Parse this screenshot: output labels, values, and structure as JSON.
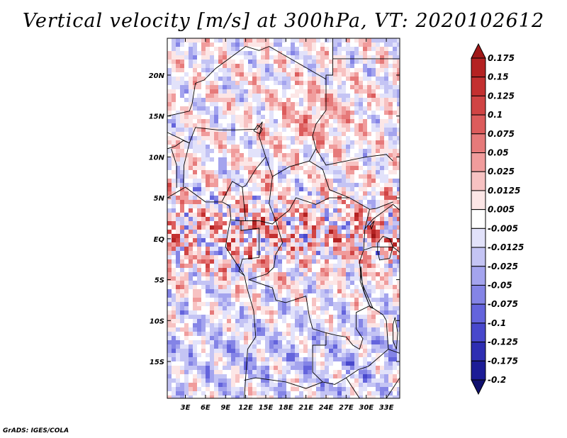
{
  "chart_data": {
    "type": "heatmap",
    "title": "Vertical velocity [m/s] at 300hPa, VT: 2020102612",
    "variable": "Vertical velocity",
    "units": "m/s",
    "level": "300hPa",
    "valid_time": "2020102612",
    "x_ticks": [
      "3E",
      "6E",
      "9E",
      "12E",
      "15E",
      "18E",
      "21E",
      "24E",
      "27E",
      "30E",
      "33E"
    ],
    "y_ticks": [
      "20N",
      "15N",
      "10N",
      "5N",
      "EQ",
      "5S",
      "10S",
      "15S"
    ],
    "x_values": [
      3,
      6,
      9,
      12,
      15,
      18,
      21,
      24,
      27,
      30,
      33
    ],
    "y_values": [
      20,
      15,
      10,
      5,
      0,
      -5,
      -10,
      -15
    ],
    "xlim": [
      0.3,
      35.0
    ],
    "ylim": [
      -19.5,
      24.5
    ],
    "colorbar": {
      "levels": [
        "0.175",
        "0.15",
        "0.125",
        "0.1",
        "0.075",
        "0.05",
        "0.025",
        "0.0125",
        "0.005",
        "-0.005",
        "-0.0125",
        "-0.025",
        "-0.05",
        "-0.075",
        "-0.1",
        "-0.125",
        "-0.175",
        "-0.2"
      ],
      "colors": [
        "#a01818",
        "#b42222",
        "#c33030",
        "#d04444",
        "#dc5c5c",
        "#e67a7a",
        "#f09c9c",
        "#f7c2c2",
        "#fce6e6",
        "#ffffff",
        "#e2e2fa",
        "#c4c4f4",
        "#a4a4ee",
        "#8484e6",
        "#6464dc",
        "#4848cc",
        "#2e2eb2",
        "#1c1c96",
        "#10106e"
      ]
    }
  },
  "footer": {
    "credit": "GrADS: IGES/COLA"
  }
}
